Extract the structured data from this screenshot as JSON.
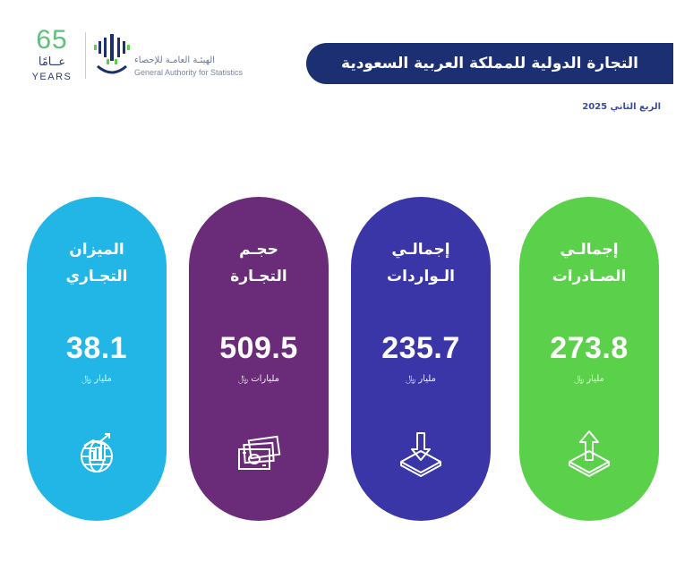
{
  "header": {
    "anniversary_number": "65",
    "anniversary_ar": "عــامًا",
    "anniversary_en": "YEARS",
    "org_name_ar": "الهيئـة العامـة للإحصاء",
    "org_name_en": "General Authority for Statistics",
    "title": "التجارة الدولية للمملكة العربية السعودية",
    "period": "الربع الثاني 2025"
  },
  "colors": {
    "title_bar": "#1c2f72",
    "trade_balance": "#22b6e6",
    "trade_volume": "#6a2b79",
    "imports": "#3a36a8",
    "exports": "#5bd04b"
  },
  "cards": [
    {
      "id": "trade-balance",
      "label_line1": "الميزان",
      "label_line2": "التجـاري",
      "value": "38.1",
      "unit": "مليار ﷼",
      "icon": "globe-growth-icon"
    },
    {
      "id": "trade-volume",
      "label_line1": "حجـم",
      "label_line2": "التجـارة",
      "value": "509.5",
      "unit": "مليارات ﷼",
      "icon": "cash-icon"
    },
    {
      "id": "imports",
      "label_line1": "إجمالـي",
      "label_line2": "الـواردات",
      "value": "235.7",
      "unit": "مليار ﷼",
      "icon": "import-arrow-icon"
    },
    {
      "id": "exports",
      "label_line1": "إجمالـي",
      "label_line2": "الصـادرات",
      "value": "273.8",
      "unit": "مليار ﷼",
      "icon": "export-arrow-icon"
    }
  ]
}
